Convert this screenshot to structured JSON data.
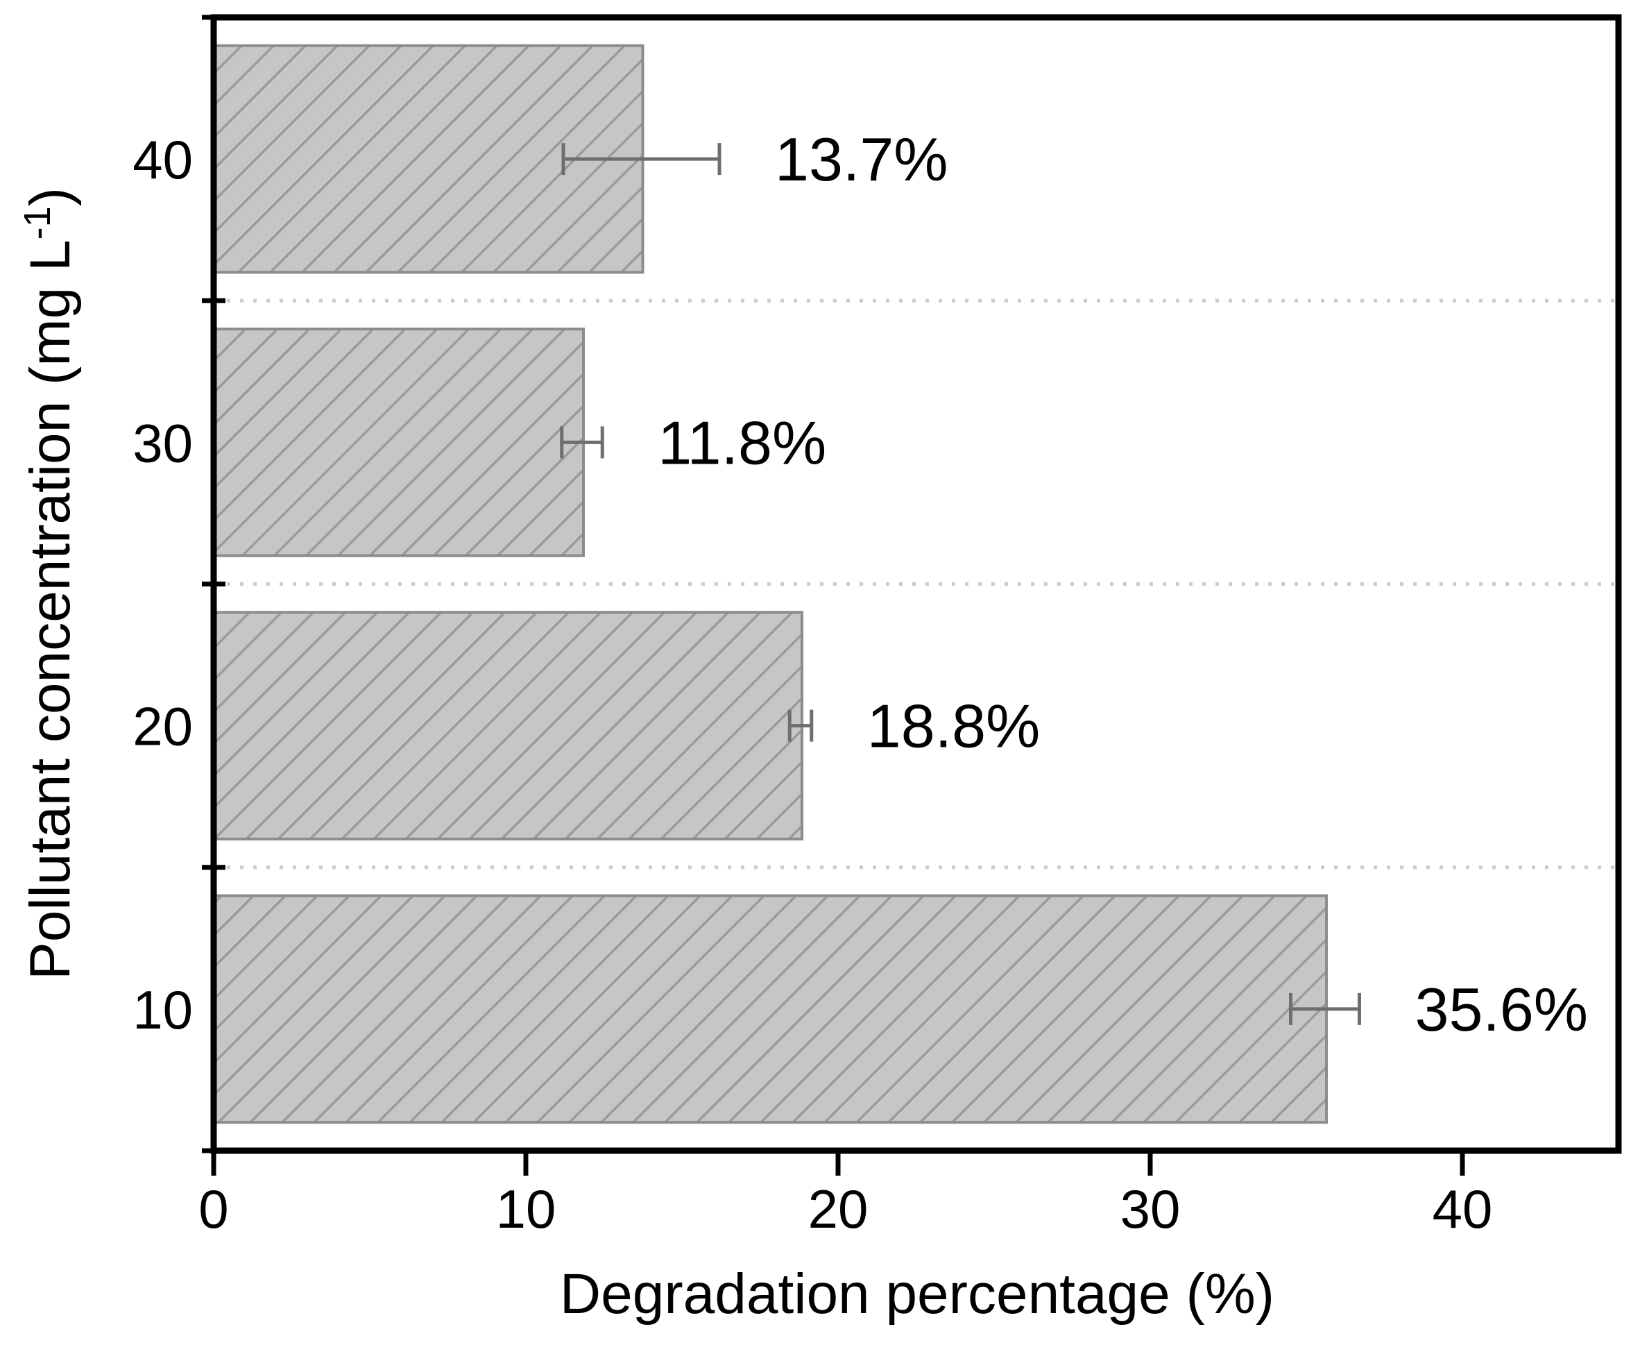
{
  "chart_data": {
    "type": "bar",
    "orientation": "horizontal",
    "title": "",
    "xlabel": "Degradation percentage (%)",
    "ylabel": "Pollutant concentration (mg L⁻¹)",
    "ylabel_parts": {
      "prefix": "Pollutant concentration (mg L",
      "superscript": "-1",
      "suffix": ")"
    },
    "categories": [
      "40",
      "30",
      "20",
      "10"
    ],
    "values": [
      13.7,
      11.8,
      18.8,
      35.6
    ],
    "errors": [
      2.5,
      0.65,
      0.35,
      1.1
    ],
    "value_labels": [
      "13.7%",
      "11.8%",
      "18.8%",
      "35.6%"
    ],
    "xlim": [
      0,
      45
    ],
    "xtick_labels": [
      "0",
      "10",
      "20",
      "30",
      "40"
    ],
    "xtick_values": [
      0,
      10,
      20,
      30,
      40
    ],
    "grid": "dotted horizontal lines between category slots",
    "legend": "none",
    "bar_style": "gray fill with diagonal forward-slash hatching and error bars"
  },
  "colors": {
    "background": "#ffffff",
    "bar_fill": "#c6c6c6",
    "bar_hatch": "#9a9a9a",
    "bar_edge": "#8c8c8c",
    "error_bar": "#6e6e6e",
    "axis": "#000000",
    "gridline": "#cccccc",
    "text": "#000000"
  }
}
